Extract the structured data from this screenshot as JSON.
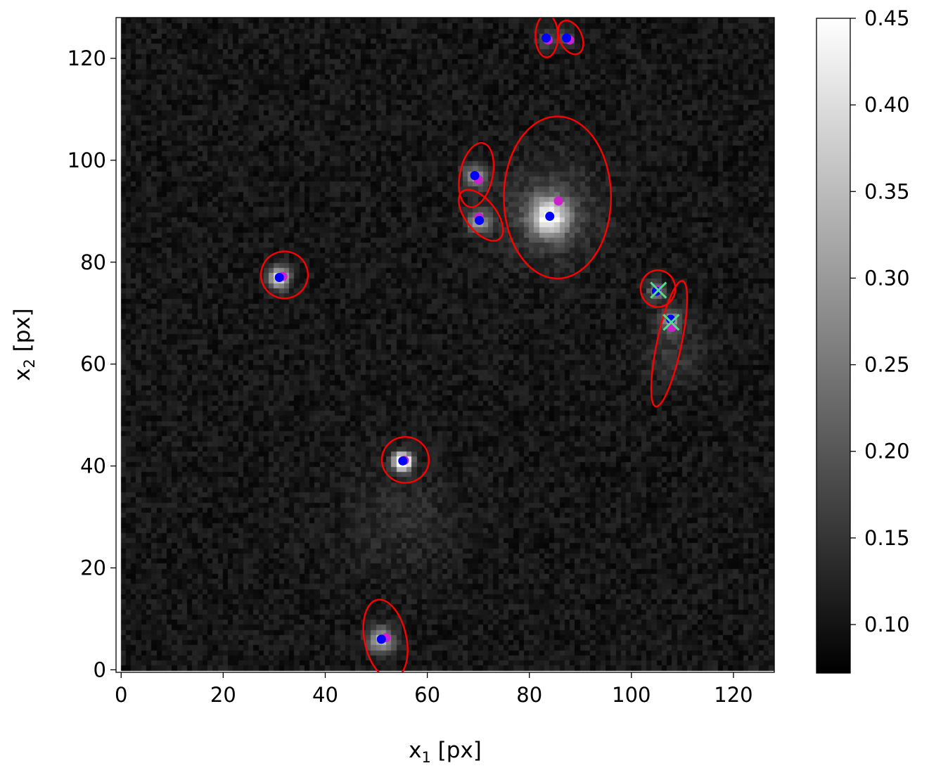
{
  "chart_data": [
    {
      "type": "scatter",
      "xlabel_main": "x",
      "xlabel_sub": "1",
      "xlabel_unit": " [px]",
      "ylabel_main": "x",
      "ylabel_sub": "2",
      "ylabel_unit": " [px]",
      "xlim": [
        -1,
        128
      ],
      "ylim": [
        -0.5,
        128
      ],
      "xticks": [
        0,
        20,
        40,
        60,
        80,
        100,
        120
      ],
      "yticks": [
        0,
        20,
        40,
        60,
        80,
        100,
        120
      ],
      "background_image": "grayscale noise image with bright sources",
      "series": [
        {
          "marker": "dot",
          "color": "#0000ff",
          "points": [
            [
              31,
              77
            ],
            [
              55.2,
              41
            ],
            [
              51,
              6
            ],
            [
              69.3,
              97
            ],
            [
              70.2,
              88.2
            ],
            [
              84,
              89
            ],
            [
              83.3,
              124
            ],
            [
              87.3,
              124
            ],
            [
              107.7,
              68.8
            ],
            [
              104.9,
              74.3
            ]
          ]
        },
        {
          "marker": "dot",
          "color": "#cc22cc",
          "points": [
            [
              31.7,
              77.2
            ],
            [
              55.5,
              41.1
            ],
            [
              51.9,
              6.3
            ],
            [
              70,
              96.2
            ],
            [
              70.1,
              88.8
            ],
            [
              85.7,
              92
            ],
            [
              83.7,
              123.6
            ],
            [
              87.9,
              123.6
            ],
            [
              107.9,
              67.2
            ],
            [
              105.1,
              74.6
            ]
          ]
        },
        {
          "marker": "x",
          "color": "#55dd88",
          "points": [
            [
              105.3,
              74.5
            ],
            [
              107.8,
              68.2
            ]
          ]
        }
      ],
      "ellipses": {
        "color": "#ff0000",
        "items": [
          {
            "cx": 32,
            "cy": 77.5,
            "rx": 4.6,
            "ry": 4.6,
            "rot": 20
          },
          {
            "cx": 55.7,
            "cy": 41.2,
            "rx": 4.6,
            "ry": 4.5,
            "rot": 0
          },
          {
            "cx": 51.8,
            "cy": 6,
            "rx": 4.1,
            "ry": 7.9,
            "rot": -12
          },
          {
            "cx": 69.6,
            "cy": 97.1,
            "rx": 3.2,
            "ry": 6.4,
            "rot": 12
          },
          {
            "cx": 70.5,
            "cy": 89.2,
            "rx": 3.0,
            "ry": 5.9,
            "rot": -38
          },
          {
            "cx": 85.5,
            "cy": 92.7,
            "rx": 10.5,
            "ry": 15.9,
            "rot": 0
          },
          {
            "cx": 83.4,
            "cy": 124.4,
            "rx": 2.2,
            "ry": 4.2,
            "rot": 0
          },
          {
            "cx": 88.1,
            "cy": 124.1,
            "rx": 2.2,
            "ry": 3.5,
            "rot": -25
          },
          {
            "cx": 105.2,
            "cy": 74.8,
            "rx": 3.4,
            "ry": 3.6,
            "rot": 0
          },
          {
            "cx": 107.4,
            "cy": 64.0,
            "rx": 2.4,
            "ry": 12.6,
            "rot": 12
          }
        ]
      }
    },
    {
      "type": "heatmap",
      "role": "colorbar",
      "range": [
        0.072,
        0.45
      ],
      "ticks": [
        0.1,
        0.15,
        0.2,
        0.25,
        0.3,
        0.35,
        0.4,
        0.45
      ],
      "tick_labels": [
        "0.10",
        "0.15",
        "0.20",
        "0.25",
        "0.30",
        "0.35",
        "0.40",
        "0.45"
      ],
      "colormap": "gray"
    }
  ]
}
